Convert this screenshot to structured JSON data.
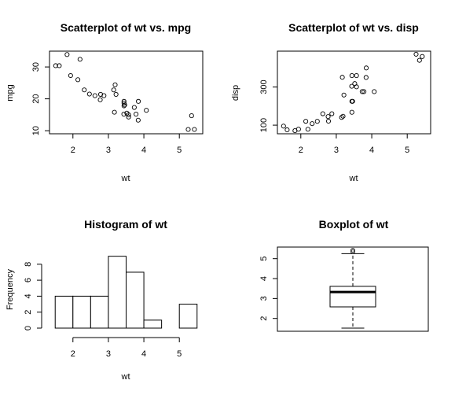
{
  "chart_data": [
    {
      "type": "scatter",
      "title": "Scatterplot of wt vs. mpg",
      "xlabel": "wt",
      "ylabel": "mpg",
      "xlim": [
        1.5,
        5.5
      ],
      "ylim": [
        10,
        34
      ],
      "xticks": [
        2,
        3,
        4,
        5
      ],
      "yticks": [
        10,
        20,
        30
      ],
      "points": [
        {
          "x": 1.513,
          "y": 30.4
        },
        {
          "x": 1.615,
          "y": 30.4
        },
        {
          "x": 1.835,
          "y": 33.9
        },
        {
          "x": 1.935,
          "y": 27.3
        },
        {
          "x": 2.14,
          "y": 26.0
        },
        {
          "x": 2.2,
          "y": 32.4
        },
        {
          "x": 2.32,
          "y": 22.8
        },
        {
          "x": 2.465,
          "y": 21.5
        },
        {
          "x": 2.62,
          "y": 21.0
        },
        {
          "x": 2.77,
          "y": 19.7
        },
        {
          "x": 2.78,
          "y": 21.4
        },
        {
          "x": 2.875,
          "y": 21.0
        },
        {
          "x": 3.15,
          "y": 22.8
        },
        {
          "x": 3.17,
          "y": 15.8
        },
        {
          "x": 3.19,
          "y": 24.4
        },
        {
          "x": 3.215,
          "y": 21.4
        },
        {
          "x": 3.435,
          "y": 15.2
        },
        {
          "x": 3.44,
          "y": 18.7
        },
        {
          "x": 3.44,
          "y": 19.2
        },
        {
          "x": 3.44,
          "y": 17.8
        },
        {
          "x": 3.46,
          "y": 18.1
        },
        {
          "x": 3.52,
          "y": 15.5
        },
        {
          "x": 3.57,
          "y": 14.3
        },
        {
          "x": 3.57,
          "y": 15.0
        },
        {
          "x": 3.73,
          "y": 17.3
        },
        {
          "x": 3.78,
          "y": 15.2
        },
        {
          "x": 3.84,
          "y": 13.3
        },
        {
          "x": 3.845,
          "y": 19.2
        },
        {
          "x": 4.07,
          "y": 16.4
        },
        {
          "x": 5.25,
          "y": 10.4
        },
        {
          "x": 5.345,
          "y": 14.7
        },
        {
          "x": 5.424,
          "y": 10.4
        }
      ]
    },
    {
      "type": "scatter",
      "title": "Scatterplot of wt vs. disp",
      "xlabel": "wt",
      "ylabel": "disp",
      "xlim": [
        1.5,
        5.5
      ],
      "ylim": [
        71,
        472
      ],
      "xticks": [
        2,
        3,
        4,
        5
      ],
      "yticks": [
        100,
        300
      ],
      "points": [
        {
          "x": 1.513,
          "y": 95.1
        },
        {
          "x": 1.615,
          "y": 75.7
        },
        {
          "x": 1.835,
          "y": 71.1
        },
        {
          "x": 1.935,
          "y": 79.0
        },
        {
          "x": 2.14,
          "y": 120.3
        },
        {
          "x": 2.2,
          "y": 78.7
        },
        {
          "x": 2.32,
          "y": 108.0
        },
        {
          "x": 2.465,
          "y": 120.1
        },
        {
          "x": 2.62,
          "y": 160.0
        },
        {
          "x": 2.77,
          "y": 145.0
        },
        {
          "x": 2.78,
          "y": 121.0
        },
        {
          "x": 2.875,
          "y": 160.0
        },
        {
          "x": 3.15,
          "y": 140.8
        },
        {
          "x": 3.17,
          "y": 351.0
        },
        {
          "x": 3.19,
          "y": 146.7
        },
        {
          "x": 3.215,
          "y": 258.0
        },
        {
          "x": 3.435,
          "y": 304.0
        },
        {
          "x": 3.44,
          "y": 360.0
        },
        {
          "x": 3.44,
          "y": 225.0
        },
        {
          "x": 3.44,
          "y": 167.6
        },
        {
          "x": 3.46,
          "y": 225.0
        },
        {
          "x": 3.52,
          "y": 318.0
        },
        {
          "x": 3.57,
          "y": 360.0
        },
        {
          "x": 3.57,
          "y": 301.0
        },
        {
          "x": 3.73,
          "y": 275.8
        },
        {
          "x": 3.78,
          "y": 275.8
        },
        {
          "x": 3.84,
          "y": 350.0
        },
        {
          "x": 3.845,
          "y": 400.0
        },
        {
          "x": 4.07,
          "y": 275.8
        },
        {
          "x": 5.25,
          "y": 472.0
        },
        {
          "x": 5.345,
          "y": 440.0
        },
        {
          "x": 5.424,
          "y": 460.0
        }
      ]
    },
    {
      "type": "bar",
      "title": "Histogram of wt",
      "xlabel": "wt",
      "ylabel": "Frequency",
      "xlim": [
        1.5,
        5.5
      ],
      "ylim": [
        0,
        9
      ],
      "xticks": [
        2,
        3,
        4,
        5
      ],
      "yticks": [
        0,
        2,
        4,
        6,
        8
      ],
      "bins": [
        {
          "start": 1.5,
          "end": 2.0,
          "count": 4
        },
        {
          "start": 2.0,
          "end": 2.5,
          "count": 4
        },
        {
          "start": 2.5,
          "end": 3.0,
          "count": 4
        },
        {
          "start": 3.0,
          "end": 3.5,
          "count": 9
        },
        {
          "start": 3.5,
          "end": 4.0,
          "count": 7
        },
        {
          "start": 4.0,
          "end": 4.5,
          "count": 1
        },
        {
          "start": 4.5,
          "end": 5.0,
          "count": 0
        },
        {
          "start": 5.0,
          "end": 5.5,
          "count": 3
        }
      ]
    },
    {
      "type": "box",
      "title": "Boxplot of wt",
      "ylim": [
        1.513,
        5.424
      ],
      "yticks": [
        2,
        3,
        4,
        5
      ],
      "min": 1.513,
      "q1": 2.58,
      "median": 3.325,
      "q3": 3.61,
      "whisker_high": 5.25,
      "outliers": [
        5.345,
        5.424
      ]
    }
  ]
}
